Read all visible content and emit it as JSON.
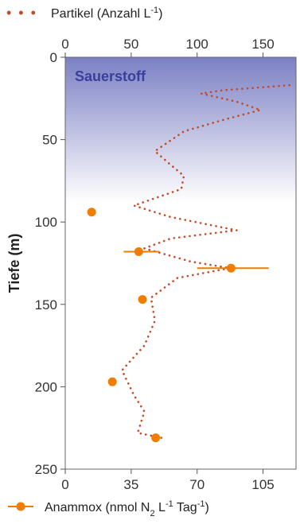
{
  "chart_data": {
    "type": "line",
    "ylabel": "Tiefe (m)",
    "y_ticks": [
      "0",
      "50",
      "100",
      "150",
      "200",
      "250"
    ],
    "ylim": [
      0,
      250
    ],
    "y_inverted": true,
    "shaded_label": "Sauerstoff",
    "shaded_depth_range": [
      0,
      88
    ],
    "top_axis": {
      "ticks": [
        "0",
        "50",
        "100",
        "150"
      ],
      "lim": [
        0,
        175
      ]
    },
    "bottom_axis": {
      "ticks": [
        "0",
        "35",
        "70",
        "105"
      ],
      "lim": [
        0,
        122.5
      ]
    },
    "series": [
      {
        "name": "Partikel (Anzahl L-1)",
        "style": "dotted",
        "color": "#c44a2a",
        "axis": "top",
        "points": [
          {
            "x": 170,
            "y": 17
          },
          {
            "x": 120,
            "y": 20
          },
          {
            "x": 103,
            "y": 22
          },
          {
            "x": 130,
            "y": 27
          },
          {
            "x": 148,
            "y": 32
          },
          {
            "x": 120,
            "y": 38
          },
          {
            "x": 90,
            "y": 45
          },
          {
            "x": 68,
            "y": 57
          },
          {
            "x": 78,
            "y": 64
          },
          {
            "x": 90,
            "y": 72
          },
          {
            "x": 88,
            "y": 80
          },
          {
            "x": 52,
            "y": 90
          },
          {
            "x": 80,
            "y": 97
          },
          {
            "x": 130,
            "y": 105
          },
          {
            "x": 80,
            "y": 110
          },
          {
            "x": 60,
            "y": 116
          },
          {
            "x": 95,
            "y": 124
          },
          {
            "x": 125,
            "y": 128
          },
          {
            "x": 85,
            "y": 134
          },
          {
            "x": 65,
            "y": 146
          },
          {
            "x": 68,
            "y": 160
          },
          {
            "x": 60,
            "y": 175
          },
          {
            "x": 43,
            "y": 190
          },
          {
            "x": 52,
            "y": 205
          },
          {
            "x": 60,
            "y": 215
          },
          {
            "x": 55,
            "y": 228
          },
          {
            "x": 73,
            "y": 231
          }
        ]
      },
      {
        "name": "Anammox (nmol N2 L-1 Tag-1)",
        "style": "markers",
        "color": "#f07d00",
        "axis": "bottom",
        "points": [
          {
            "x": 14,
            "y": 94
          },
          {
            "x": 39,
            "y": 118,
            "xerr": [
              31,
              50
            ]
          },
          {
            "x": 88,
            "y": 128,
            "xerr": [
              70,
              108
            ]
          },
          {
            "x": 41,
            "y": 147
          },
          {
            "x": 25,
            "y": 197
          },
          {
            "x": 48,
            "y": 231,
            "xerr": [
              46,
              51
            ]
          }
        ]
      }
    ],
    "legend_top": {
      "pre": "Partikel (Anzahl L",
      "sup": "-1",
      "post": ")"
    },
    "legend_bottom": {
      "pre": "Anammox (nmol N",
      "sub": "2",
      "mid1": " L",
      "sup1": "-1",
      "mid2": " Tag",
      "sup2": "-1",
      "post": ")"
    }
  },
  "colors": {
    "oxygen_top": "#7b80c4",
    "oxygen_bottom": "#ffffff",
    "sauerstoff_text": "#3b3f9c",
    "particle": "#c44a2a",
    "anammox": "#f07d00"
  }
}
